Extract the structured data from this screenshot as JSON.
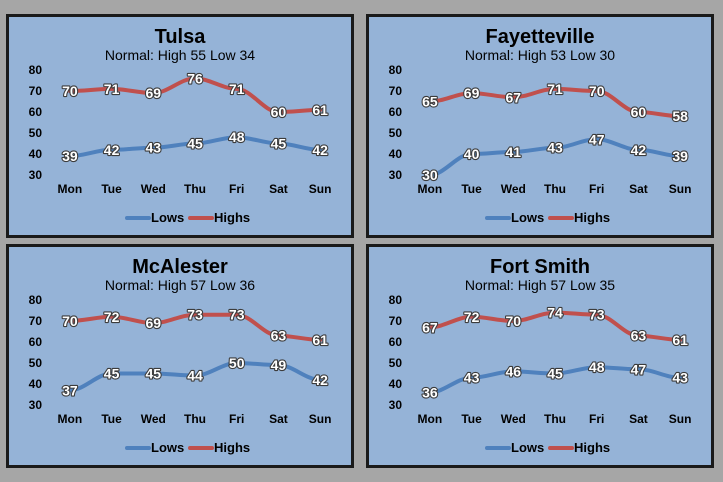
{
  "colors": {
    "lows": "#4f81bd",
    "highs": "#c0504d",
    "panel_bg": "#95b3d7",
    "frame": "#1a1a1a",
    "page_bg": "#a6a6a6"
  },
  "chart_data": [
    {
      "type": "line",
      "title": "Tulsa",
      "subtitle": "Normal: High 55 Low 34",
      "categories": [
        "Mon",
        "Tue",
        "Wed",
        "Thu",
        "Fri",
        "Sat",
        "Sun"
      ],
      "series": [
        {
          "name": "Lows",
          "values": [
            39,
            42,
            43,
            45,
            48,
            45,
            42
          ]
        },
        {
          "name": "Highs",
          "values": [
            70,
            71,
            69,
            76,
            71,
            60,
            61
          ]
        }
      ],
      "ylim": [
        30,
        80
      ],
      "yticks": [
        30,
        40,
        50,
        60,
        70,
        80
      ],
      "legend": "bottom",
      "grid": false
    },
    {
      "type": "line",
      "title": "Fayetteville",
      "subtitle": "Normal: High 53 Low 30",
      "categories": [
        "Mon",
        "Tue",
        "Wed",
        "Thu",
        "Fri",
        "Sat",
        "Sun"
      ],
      "series": [
        {
          "name": "Lows",
          "values": [
            30,
            40,
            41,
            43,
            47,
            42,
            39
          ]
        },
        {
          "name": "Highs",
          "values": [
            65,
            69,
            67,
            71,
            70,
            60,
            58
          ]
        }
      ],
      "ylim": [
        30,
        80
      ],
      "yticks": [
        30,
        40,
        50,
        60,
        70,
        80
      ],
      "legend": "bottom",
      "grid": false
    },
    {
      "type": "line",
      "title": "McAlester",
      "subtitle": "Normal: High 57 Low 36",
      "categories": [
        "Mon",
        "Tue",
        "Wed",
        "Thu",
        "Fri",
        "Sat",
        "Sun"
      ],
      "series": [
        {
          "name": "Lows",
          "values": [
            37,
            45,
            45,
            44,
            50,
            49,
            42
          ]
        },
        {
          "name": "Highs",
          "values": [
            70,
            72,
            69,
            73,
            73,
            63,
            61
          ]
        }
      ],
      "ylim": [
        30,
        80
      ],
      "yticks": [
        30,
        40,
        50,
        60,
        70,
        80
      ],
      "legend": "bottom",
      "grid": false
    },
    {
      "type": "line",
      "title": "Fort Smith",
      "subtitle": "Normal: High 57 Low 35",
      "categories": [
        "Mon",
        "Tue",
        "Wed",
        "Thu",
        "Fri",
        "Sat",
        "Sun"
      ],
      "series": [
        {
          "name": "Lows",
          "values": [
            36,
            43,
            46,
            45,
            48,
            47,
            43
          ]
        },
        {
          "name": "Highs",
          "values": [
            67,
            72,
            70,
            74,
            73,
            63,
            61
          ]
        }
      ],
      "ylim": [
        30,
        80
      ],
      "yticks": [
        30,
        40,
        50,
        60,
        70,
        80
      ],
      "legend": "bottom",
      "grid": false
    }
  ]
}
